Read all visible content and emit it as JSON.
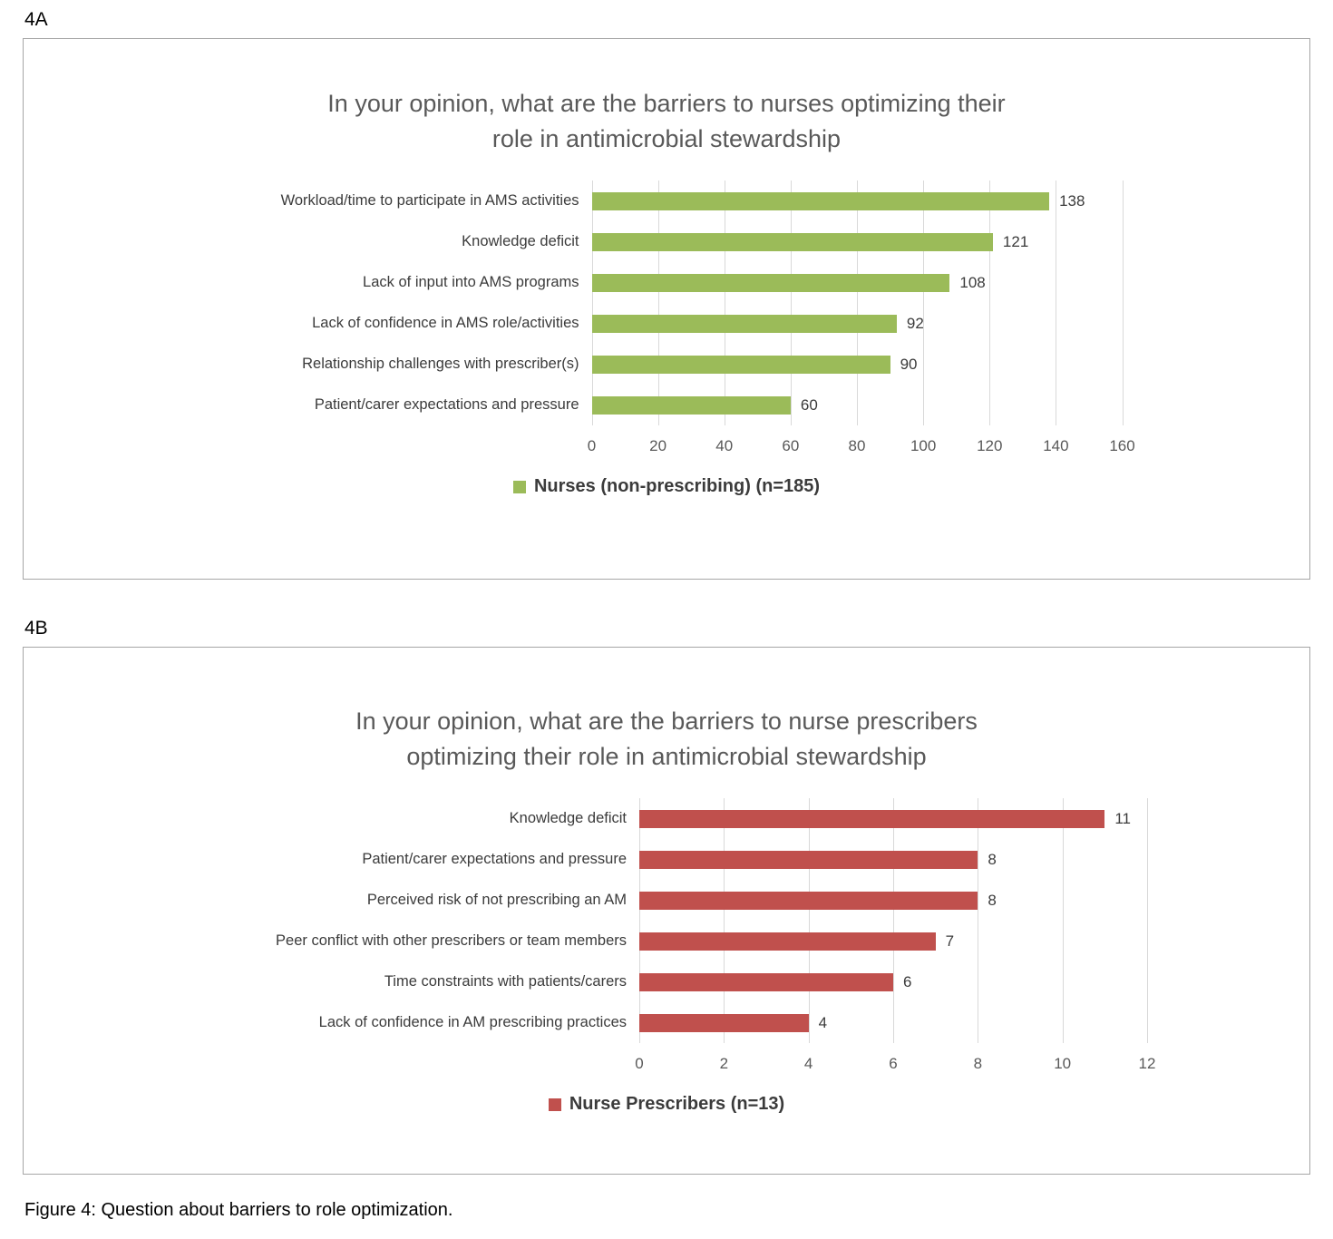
{
  "page": {
    "panel_a_label": "4A",
    "panel_b_label": "4B",
    "caption": "Figure 4: Question about barriers to role optimization."
  },
  "chart_data": [
    {
      "type": "bar",
      "orientation": "horizontal",
      "title": "In your opinion, what are the barriers to nurses optimizing their\nrole in antimicrobial stewardship",
      "categories": [
        "Workload/time to participate in AMS activities",
        "Knowledge deficit",
        "Lack of input into AMS programs",
        "Lack of confidence in AMS role/activities",
        "Relationship challenges with prescriber(s)",
        "Patient/carer expectations and pressure"
      ],
      "values": [
        138,
        121,
        108,
        92,
        90,
        60
      ],
      "xlim": [
        0,
        160
      ],
      "xticks": [
        0,
        20,
        40,
        60,
        80,
        100,
        120,
        140,
        160
      ],
      "grid": true,
      "bar_color": "#9bbb59",
      "legend": {
        "label": "Nurses (non-prescribing) (n=185)",
        "color": "#9bbb59",
        "position": "bottom"
      }
    },
    {
      "type": "bar",
      "orientation": "horizontal",
      "title": "In your opinion, what are the barriers to nurse prescribers\noptimizing their role in antimicrobial stewardship",
      "categories": [
        "Knowledge deficit",
        "Patient/carer expectations and pressure",
        "Perceived risk of not prescribing an AM",
        "Peer conflict with other prescribers or team members",
        "Time constraints with patients/carers",
        "Lack of confidence in AM prescribing practices"
      ],
      "values": [
        11,
        8,
        8,
        7,
        6,
        4
      ],
      "xlim": [
        0,
        12
      ],
      "xticks": [
        0,
        2,
        4,
        6,
        8,
        10,
        12
      ],
      "grid": true,
      "bar_color": "#c0504d",
      "legend": {
        "label": "Nurse Prescribers (n=13)",
        "color": "#c0504d",
        "position": "bottom"
      }
    }
  ]
}
